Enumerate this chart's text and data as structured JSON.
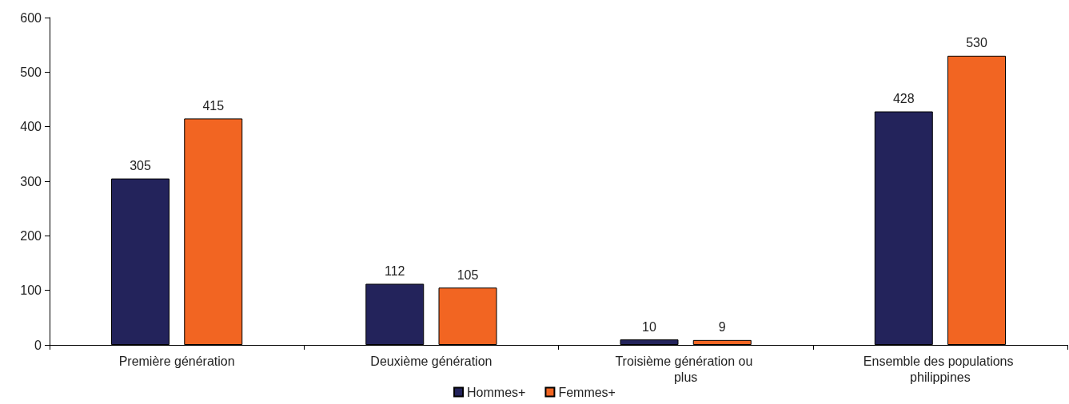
{
  "chart_data": {
    "type": "bar",
    "categories": [
      "Première génération",
      "Deuxième génération",
      "Troisième génération ou plus",
      "Ensemble des populations philippines"
    ],
    "series": [
      {
        "name": "Hommes+",
        "color": "#23235b",
        "values": [
          305,
          112,
          10,
          428
        ]
      },
      {
        "name": "Femmes+",
        "color": "#f26522",
        "values": [
          415,
          105,
          9,
          530
        ]
      }
    ],
    "ylim": [
      0,
      600
    ],
    "yticks": [
      0,
      100,
      200,
      300,
      400,
      500,
      600
    ],
    "grid": false,
    "legend": "bottom",
    "data_labels": true
  }
}
